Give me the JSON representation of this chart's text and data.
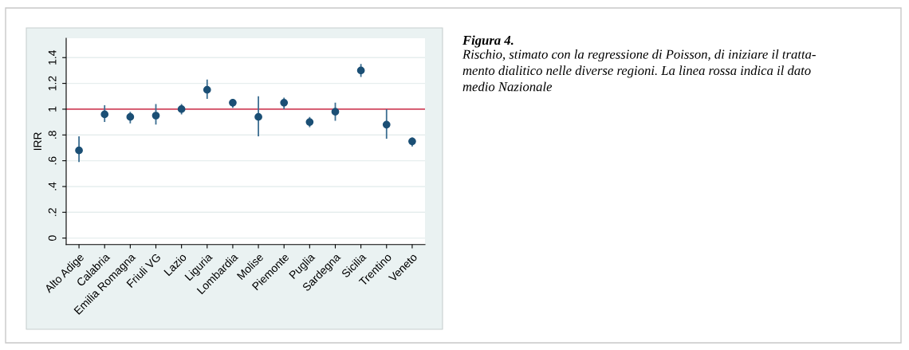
{
  "chart_data": {
    "type": "scatter",
    "title": "Figura 4.",
    "subtitle": "Rischio, stimato con la regressione di Poisson, di iniziare il tratta-\nmento dialitico nelle diverse regioni. La linea rossa indica il dato\nmedio Nazionale",
    "ylabel": "IRR",
    "categories": [
      "Alto Adige",
      "Calabria",
      "Emilia Romagna",
      "Friuli VG",
      "Lazio",
      "Liguria",
      "Lombardia",
      "Molise",
      "Piemonte",
      "Puglia",
      "Sardegna",
      "Sicilia",
      "Trentino",
      "Veneto"
    ],
    "series": [
      {
        "color": "#1b4f75",
        "values": [
          0.68,
          0.96,
          0.94,
          0.95,
          1.0,
          1.15,
          1.05,
          0.94,
          1.05,
          0.9,
          0.98,
          1.3,
          0.88,
          0.75
        ],
        "errors": [
          [
            0.59,
            0.79
          ],
          [
            0.9,
            1.03
          ],
          [
            0.89,
            0.98
          ],
          [
            0.88,
            1.04
          ],
          [
            0.96,
            1.04
          ],
          [
            1.08,
            1.23
          ],
          [
            1.01,
            1.08
          ],
          [
            0.79,
            1.1
          ],
          [
            1.0,
            1.09
          ],
          [
            0.86,
            0.94
          ],
          [
            0.91,
            1.05
          ],
          [
            1.25,
            1.35
          ],
          [
            0.77,
            1.0
          ],
          [
            0.71,
            0.78
          ]
        ]
      }
    ],
    "ylim": [
      -0.05,
      1.55
    ],
    "yticks": [
      {
        "value": 0,
        "label": "0"
      },
      {
        "value": 0.2,
        "label": ".2"
      },
      {
        "value": 0.4,
        "label": ".4"
      },
      {
        "value": 0.6,
        "label": ".6"
      },
      {
        "value": 0.8,
        "label": ".8"
      },
      {
        "value": 1,
        "label": "1"
      },
      {
        "value": 1.2,
        "label": "1.2"
      },
      {
        "value": 1.4,
        "label": "1.4"
      }
    ],
    "ref_lines": [
      {
        "axis": "y",
        "value": 1,
        "color": "#d2475f"
      }
    ],
    "grid": "y",
    "marker": "circle",
    "legend": false
  }
}
